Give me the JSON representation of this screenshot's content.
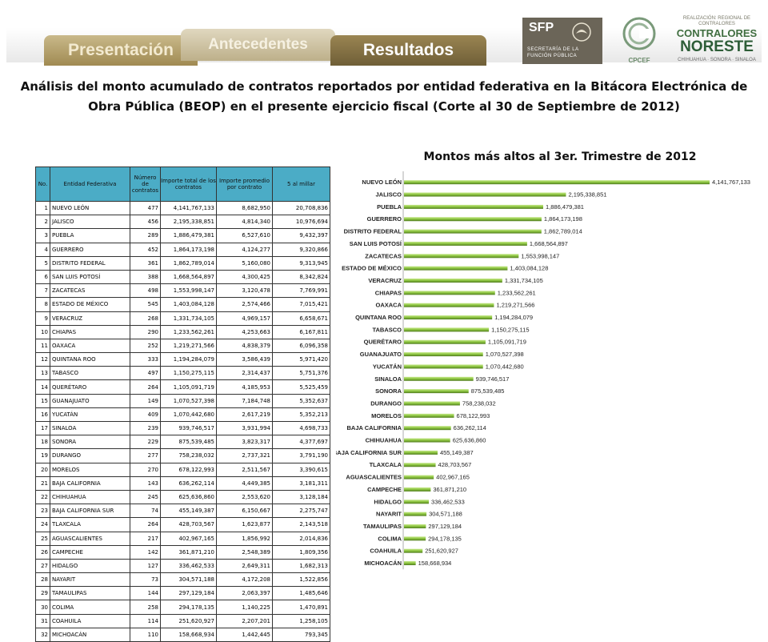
{
  "nav": {
    "tabs": [
      {
        "label": "Presentación"
      },
      {
        "label": "Antecedentes"
      },
      {
        "label": "Resultados"
      }
    ]
  },
  "logos": {
    "sfp": {
      "abbr": "SFP",
      "line1": "SECRETARÍA DE LA",
      "line2": "FUNCIÓN PÚBLICA"
    },
    "cpcef": {
      "abbr": "CPCEF"
    },
    "contraloria": {
      "line1": "REALIZACIÓN: REGIONAL DE CONTRALORES",
      "line2": "CONTRALORES",
      "line3": "NORESTE",
      "line4": "CHIHUAHUA · SONORA · SINALOA"
    }
  },
  "main_title": "Análisis del monto acumulado de contratos reportados por entidad federativa en la Bitácora Electrónica de Obra Pública (BEOP) en el presente ejercicio fiscal (Corte al 30 de Septiembre de 2012)",
  "table": {
    "headers": [
      "No.",
      "Entidad Federativa",
      "Número de contratos",
      "Importe total de los contratos",
      "Importe promedio por contrato",
      "5 al millar"
    ],
    "rows": [
      [
        "1",
        "NUEVO LEÓN",
        "477",
        "4,141,767,133",
        "8,682,950",
        "20,708,836"
      ],
      [
        "2",
        "JALISCO",
        "456",
        "2,195,338,851",
        "4,814,340",
        "10,976,694"
      ],
      [
        "3",
        "PUEBLA",
        "289",
        "1,886,479,381",
        "6,527,610",
        "9,432,397"
      ],
      [
        "4",
        "GUERRERO",
        "452",
        "1,864,173,198",
        "4,124,277",
        "9,320,866"
      ],
      [
        "5",
        "DISTRITO FEDERAL",
        "361",
        "1,862,789,014",
        "5,160,080",
        "9,313,945"
      ],
      [
        "6",
        "SAN LUIS POTOSÍ",
        "388",
        "1,668,564,897",
        "4,300,425",
        "8,342,824"
      ],
      [
        "7",
        "ZACATECAS",
        "498",
        "1,553,998,147",
        "3,120,478",
        "7,769,991"
      ],
      [
        "8",
        "ESTADO DE MÉXICO",
        "545",
        "1,403,084,128",
        "2,574,466",
        "7,015,421"
      ],
      [
        "9",
        "VERACRUZ",
        "268",
        "1,331,734,105",
        "4,969,157",
        "6,658,671"
      ],
      [
        "10",
        "CHIAPAS",
        "290",
        "1,233,562,261",
        "4,253,663",
        "6,167,811"
      ],
      [
        "11",
        "OAXACA",
        "252",
        "1,219,271,566",
        "4,838,379",
        "6,096,358"
      ],
      [
        "12",
        "QUINTANA ROO",
        "333",
        "1,194,284,079",
        "3,586,439",
        "5,971,420"
      ],
      [
        "13",
        "TABASCO",
        "497",
        "1,150,275,115",
        "2,314,437",
        "5,751,376"
      ],
      [
        "14",
        "QUERÉTARO",
        "264",
        "1,105,091,719",
        "4,185,953",
        "5,525,459"
      ],
      [
        "15",
        "GUANAJUATO",
        "149",
        "1,070,527,398",
        "7,184,748",
        "5,352,637"
      ],
      [
        "16",
        "YUCATÁN",
        "409",
        "1,070,442,680",
        "2,617,219",
        "5,352,213"
      ],
      [
        "17",
        "SINALOA",
        "239",
        "939,746,517",
        "3,931,994",
        "4,698,733"
      ],
      [
        "18",
        "SONORA",
        "229",
        "875,539,485",
        "3,823,317",
        "4,377,697"
      ],
      [
        "19",
        "DURANGO",
        "277",
        "758,238,032",
        "2,737,321",
        "3,791,190"
      ],
      [
        "20",
        "MORELOS",
        "270",
        "678,122,993",
        "2,511,567",
        "3,390,615"
      ],
      [
        "21",
        "BAJA CALIFORNIA",
        "143",
        "636,262,114",
        "4,449,385",
        "3,181,311"
      ],
      [
        "22",
        "CHIHUAHUA",
        "245",
        "625,636,860",
        "2,553,620",
        "3,128,184"
      ],
      [
        "23",
        "BAJA CALIFORNIA SUR",
        "74",
        "455,149,387",
        "6,150,667",
        "2,275,747"
      ],
      [
        "24",
        "TLAXCALA",
        "264",
        "428,703,567",
        "1,623,877",
        "2,143,518"
      ],
      [
        "25",
        "AGUASCALIENTES",
        "217",
        "402,967,165",
        "1,856,992",
        "2,014,836"
      ],
      [
        "26",
        "CAMPECHE",
        "142",
        "361,871,210",
        "2,548,389",
        "1,809,356"
      ],
      [
        "27",
        "HIDALGO",
        "127",
        "336,462,533",
        "2,649,311",
        "1,682,313"
      ],
      [
        "28",
        "NAYARIT",
        "73",
        "304,571,188",
        "4,172,208",
        "1,522,856"
      ],
      [
        "29",
        "TAMAULIPAS",
        "144",
        "297,129,184",
        "2,063,397",
        "1,485,646"
      ],
      [
        "30",
        "COLIMA",
        "258",
        "294,178,135",
        "1,140,225",
        "1,470,891"
      ],
      [
        "31",
        "COAHUILA",
        "114",
        "251,620,927",
        "2,207,201",
        "1,258,105"
      ],
      [
        "32",
        "MICHOACÁN",
        "110",
        "158,668,934",
        "1,442,445",
        "793,345"
      ]
    ]
  },
  "chart_data": {
    "type": "bar",
    "orientation": "horizontal",
    "title": "Montos más altos  al 3er. Trimestre de 2012",
    "categories": [
      "NUEVO LEÓN",
      "JALISCO",
      "PUEBLA",
      "GUERRERO",
      "DISTRITO FEDERAL",
      "SAN LUIS POTOSÍ",
      "ZACATECAS",
      "ESTADO DE MÉXICO",
      "VERACRUZ",
      "CHIAPAS",
      "OAXACA",
      "QUINTANA ROO",
      "TABASCO",
      "QUERÉTARO",
      "GUANAJUATO",
      "YUCATÁN",
      "SINALOA",
      "SONORA",
      "DURANGO",
      "MORELOS",
      "BAJA CALIFORNIA",
      "CHIHUAHUA",
      "BAJA CALIFORNIA SUR",
      "TLAXCALA",
      "AGUASCALIENTES",
      "CAMPECHE",
      "HIDALGO",
      "NAYARIT",
      "TAMAULIPAS",
      "COLIMA",
      "COAHUILA",
      "MICHOACÁN"
    ],
    "values": [
      4141767133,
      2195338851,
      1886479381,
      1864173198,
      1862789014,
      1668564897,
      1553998147,
      1403084128,
      1331734105,
      1233562261,
      1219271566,
      1194284079,
      1150275115,
      1105091719,
      1070527398,
      1070442680,
      939746517,
      875539485,
      758238032,
      678122993,
      636262114,
      625636860,
      455149387,
      428703567,
      402967165,
      361871210,
      336462533,
      304571188,
      297129184,
      294178135,
      251620927,
      158668934
    ],
    "data_labels": [
      "4,141,767,133",
      "2,195,338,851",
      "1,886,479,381",
      "1,864,173,198",
      "1,862,789,014",
      "1,668,564,897",
      "1,553,998,147",
      "1,403,084,128",
      "1,331,734,105",
      "1,233,562,261",
      "1,219,271,566",
      "1,194,284,079",
      "1,150,275,115",
      "1,105,091,719",
      "1,070,527,398",
      "1,070,442,680",
      "939,746,517",
      "875,539,485",
      "758,238,032",
      "678,122,993",
      "636,262,114",
      "625,636,860",
      "455,149,387",
      "428,703,567",
      "402,967,165",
      "361,871,210",
      "336,462,533",
      "304,571,188",
      "297,129,184",
      "294,178,135",
      "251,620,927",
      "158,668,934"
    ],
    "xlim": [
      0,
      4141767133
    ],
    "grid": false,
    "legend": "none",
    "bar_color": "#8bc43f"
  }
}
